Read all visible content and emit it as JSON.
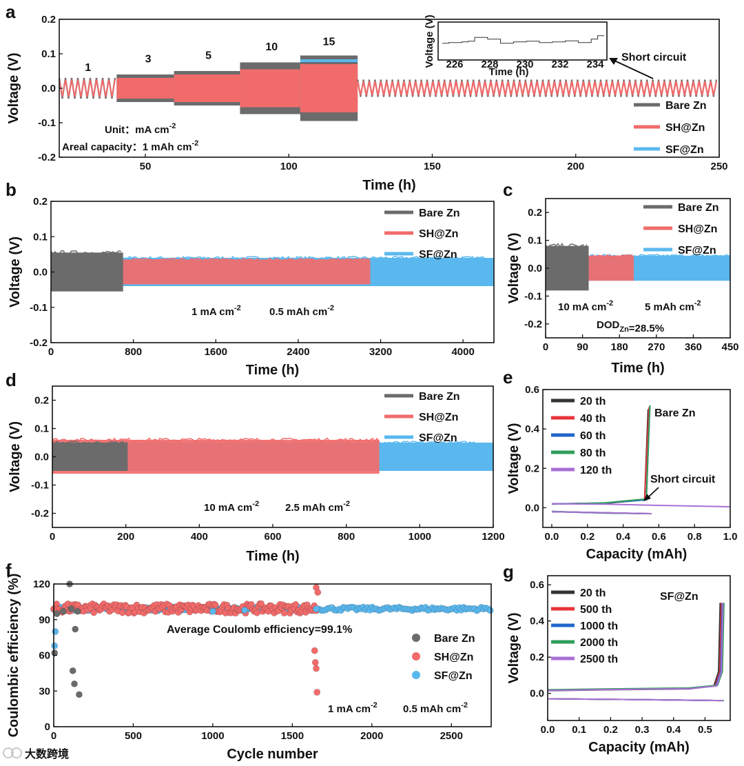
{
  "colors": {
    "bare": "#6b6b6b",
    "sh": "#f26b6b",
    "sf": "#5ab8ee",
    "shortText": "#8a8a8a"
  },
  "watermark": "大数跨境",
  "chart_data": [
    {
      "id": "a",
      "type": "line",
      "panel_letter": "a",
      "title": "",
      "xlabel": "Time (h)",
      "ylabel": "Voltage (V)",
      "xlim": [
        20,
        250
      ],
      "ylim": [
        -0.2,
        0.2
      ],
      "xticks": [
        "50",
        "100",
        "150",
        "200",
        "250"
      ],
      "yticks": [
        "-0.2",
        "-0.1",
        "0.0",
        "0.1",
        "0.2"
      ],
      "legend": [
        "Bare Zn",
        "SH@Zn",
        "SF@Zn"
      ],
      "rate_labels": [
        "1",
        "3",
        "5",
        "10",
        "15"
      ],
      "annotations": [
        "Unit：mA cm-2",
        "Areal capacity：1 mAh cm-2",
        "Short circuit"
      ],
      "series": [
        {
          "name": "Bare Zn",
          "segments": [
            [
              20,
              40,
              0.03
            ],
            [
              40,
              60,
              0.04
            ],
            [
              60,
              83,
              0.05
            ],
            [
              83,
              104,
              0.075
            ],
            [
              104,
              124,
              0.095
            ],
            [
              124,
              250,
              0.025
            ]
          ]
        },
        {
          "name": "SH@Zn",
          "segments": [
            [
              20,
              40,
              0.025
            ],
            [
              40,
              60,
              0.03
            ],
            [
              60,
              83,
              0.04
            ],
            [
              83,
              104,
              0.055
            ],
            [
              104,
              124,
              0.07
            ],
            [
              124,
              250,
              0.02
            ]
          ]
        },
        {
          "name": "SF@Zn",
          "segments": [
            [
              20,
              40,
              0.02
            ],
            [
              40,
              60,
              0.025
            ],
            [
              60,
              83,
              0.03
            ],
            [
              83,
              104,
              0.05
            ],
            [
              104,
              124,
              0.08
            ],
            [
              124,
              250,
              0.018
            ]
          ]
        }
      ],
      "inset": {
        "xlabel": "Time (h)",
        "ylabel": "Voltage (V)",
        "xticks": [
          "226",
          "228",
          "230",
          "232",
          "234"
        ]
      }
    },
    {
      "id": "b",
      "type": "area",
      "panel_letter": "b",
      "xlabel": "Time (h)",
      "ylabel": "Voltage (V)",
      "xlim": [
        0,
        4300
      ],
      "ylim": [
        -0.2,
        0.2
      ],
      "xticks": [
        "0",
        "800",
        "1600",
        "2400",
        "3200",
        "4000"
      ],
      "yticks": [
        "-0.2",
        "-0.1",
        "0.0",
        "0.1",
        "0.2"
      ],
      "legend": [
        "Bare Zn",
        "SH@Zn",
        "SF@Zn"
      ],
      "annotations": [
        "1 mA cm-2",
        "0.5 mAh cm-2"
      ],
      "series": [
        {
          "name": "SF@Zn",
          "x_end": 4300,
          "amplitude": 0.04
        },
        {
          "name": "SH@Zn",
          "x_end": 3100,
          "amplitude": 0.035
        },
        {
          "name": "Bare Zn",
          "x_end": 700,
          "amplitude": 0.055
        }
      ]
    },
    {
      "id": "c",
      "type": "area",
      "panel_letter": "c",
      "xlabel": "Time (h)",
      "ylabel": "Voltage (V)",
      "xlim": [
        0,
        450
      ],
      "ylim": [
        -0.25,
        0.25
      ],
      "xticks": [
        "0",
        "90",
        "180",
        "270",
        "360",
        "450"
      ],
      "yticks": [
        "-0.2",
        "-0.1",
        "0.0",
        "0.1",
        "0.2"
      ],
      "legend": [
        "Bare Zn",
        "SH@Zn",
        "SF@Zn"
      ],
      "annotations": [
        "10 mA cm-2",
        "5 mAh cm-2",
        "DODZn=28.5%"
      ],
      "series": [
        {
          "name": "SF@Zn",
          "x_end": 450,
          "amplitude": 0.045
        },
        {
          "name": "SH@Zn",
          "x_end": 215,
          "amplitude": 0.045
        },
        {
          "name": "Bare Zn",
          "x_end": 105,
          "amplitude": 0.08
        }
      ]
    },
    {
      "id": "d",
      "type": "area",
      "panel_letter": "d",
      "xlabel": "Time (h)",
      "ylabel": "Voltage (V)",
      "xlim": [
        0,
        1200
      ],
      "ylim": [
        -0.25,
        0.25
      ],
      "xticks": [
        "0",
        "200",
        "400",
        "600",
        "800",
        "1000",
        "1200"
      ],
      "yticks": [
        "-0.2",
        "-0.1",
        "0.0",
        "0.1",
        "0.2"
      ],
      "legend": [
        "Bare Zn",
        "SH@Zn",
        "SF@Zn"
      ],
      "annotations": [
        "10 mA cm-2",
        "2.5 mAh cm-2"
      ],
      "series": [
        {
          "name": "SF@Zn",
          "x_end": 1200,
          "amplitude": 0.05
        },
        {
          "name": "SH@Zn",
          "x_end": 890,
          "amplitude": 0.06
        },
        {
          "name": "Bare Zn",
          "x_end": 205,
          "amplitude": 0.05
        }
      ]
    },
    {
      "id": "e",
      "type": "line",
      "panel_letter": "e",
      "xlabel": "Capacity (mAh)",
      "ylabel": "Voltage (V)",
      "xlim": [
        -0.05,
        1.0
      ],
      "ylim": [
        -0.1,
        0.6
      ],
      "xticks": [
        "0.0",
        "0.2",
        "0.4",
        "0.6",
        "0.8",
        "1.0"
      ],
      "yticks": [
        "0.0",
        "0.2",
        "0.4",
        "0.6"
      ],
      "legend": [
        "20 th",
        "40 th",
        "60 th",
        "80 th",
        "120 th"
      ],
      "legend_colors": [
        "#333333",
        "#e8333a",
        "#2266cc",
        "#2e9e5a",
        "#a970d6"
      ],
      "annotations": [
        "Bare Zn",
        "Short circuit"
      ],
      "series": [
        {
          "name": "20 th",
          "charge": [
            [
              0.0,
              0.02
            ],
            [
              0.3,
              0.022
            ],
            [
              0.52,
              0.04
            ],
            [
              0.54,
              0.5
            ]
          ],
          "discharge": [
            [
              0.0,
              -0.02
            ],
            [
              0.3,
              -0.025
            ],
            [
              0.54,
              -0.03
            ]
          ]
        },
        {
          "name": "40 th",
          "charge": [
            [
              0.0,
              0.02
            ],
            [
              0.3,
              0.023
            ],
            [
              0.52,
              0.04
            ],
            [
              0.545,
              0.51
            ]
          ],
          "discharge": [
            [
              0.0,
              -0.02
            ],
            [
              0.3,
              -0.026
            ],
            [
              0.545,
              -0.03
            ]
          ]
        },
        {
          "name": "60 th",
          "charge": [
            [
              0.0,
              0.02
            ],
            [
              0.3,
              0.024
            ],
            [
              0.53,
              0.04
            ],
            [
              0.55,
              0.52
            ]
          ],
          "discharge": [
            [
              0.0,
              -0.02
            ],
            [
              0.3,
              -0.027
            ],
            [
              0.55,
              -0.03
            ]
          ]
        },
        {
          "name": "80 th",
          "charge": [
            [
              0.0,
              0.018
            ],
            [
              0.3,
              0.025
            ],
            [
              0.53,
              0.045
            ],
            [
              0.55,
              0.52
            ]
          ],
          "discharge": [
            [
              0.0,
              -0.018
            ],
            [
              0.3,
              -0.027
            ],
            [
              0.55,
              -0.03
            ]
          ]
        },
        {
          "name": "120 th",
          "charge": [
            [
              0.0,
              0.02
            ],
            [
              0.3,
              0.018
            ],
            [
              0.6,
              0.012
            ],
            [
              1.0,
              0.005
            ]
          ],
          "discharge": [
            [
              0.0,
              -0.02
            ],
            [
              0.3,
              -0.025
            ],
            [
              0.56,
              -0.03
            ]
          ]
        }
      ]
    },
    {
      "id": "f",
      "type": "scatter",
      "panel_letter": "f",
      "xlabel": "Cycle number",
      "ylabel": "Coulombic efficiency (%)",
      "xlim": [
        0,
        2750
      ],
      "ylim": [
        0,
        120
      ],
      "xticks": [
        "0",
        "500",
        "1000",
        "1500",
        "2000",
        "2500"
      ],
      "yticks": [
        "0",
        "30",
        "60",
        "90",
        "120"
      ],
      "legend": [
        "Bare Zn",
        "SH@Zn",
        "SF@Zn"
      ],
      "annotations": [
        "Average Coulomb efficiency=99.1%",
        "1 mA cm-2",
        "0.5 mAh cm-2"
      ],
      "series": [
        {
          "name": "Bare Zn",
          "points": [
            [
              5,
              62
            ],
            [
              20,
              95
            ],
            [
              60,
              97
            ],
            [
              100,
              120
            ],
            [
              110,
              99
            ],
            [
              120,
              47
            ],
            [
              130,
              36
            ],
            [
              135,
              82
            ],
            [
              150,
              97
            ],
            [
              160,
              27
            ]
          ]
        },
        {
          "name": "SH@Zn",
          "cycle_range": [
            0,
            1650
          ],
          "mean": 99,
          "spread": 4,
          "outliers": [
            [
              1640,
              64
            ],
            [
              1645,
              54
            ],
            [
              1650,
              49
            ],
            [
              1655,
              29
            ],
            [
              1650,
              117
            ],
            [
              1660,
              113
            ]
          ]
        },
        {
          "name": "SF@Zn",
          "cycle_range": [
            0,
            2750
          ],
          "mean": 99.1,
          "spread": 1.5,
          "outliers": [
            [
              5,
              68
            ],
            [
              10,
              80
            ],
            [
              1000,
              97
            ],
            [
              1200,
              98
            ],
            [
              1650,
              99
            ]
          ]
        }
      ]
    },
    {
      "id": "g",
      "type": "line",
      "panel_letter": "g",
      "xlabel": "Capacity (mAh)",
      "ylabel": "Voltage (V)",
      "xlim": [
        0,
        0.58
      ],
      "ylim": [
        -0.15,
        0.65
      ],
      "xticks": [
        "0.0",
        "0.1",
        "0.2",
        "0.3",
        "0.4",
        "0.5"
      ],
      "yticks": [
        "0.0",
        "0.2",
        "0.4",
        "0.6"
      ],
      "legend": [
        "20 th",
        "500 th",
        "1000 th",
        "2000 th",
        "2500 th"
      ],
      "legend_colors": [
        "#333333",
        "#e8333a",
        "#2266cc",
        "#2e9e5a",
        "#a970d6"
      ],
      "annotations": [
        "SF@Zn"
      ],
      "series": [
        {
          "name": "20 th",
          "end": 0.548,
          "plateau": 0.025
        },
        {
          "name": "500 th",
          "end": 0.552,
          "plateau": 0.027
        },
        {
          "name": "1000 th",
          "end": 0.555,
          "plateau": 0.028
        },
        {
          "name": "2000 th",
          "end": 0.56,
          "plateau": 0.03
        },
        {
          "name": "2500 th",
          "end": 0.557,
          "plateau": 0.026
        }
      ]
    }
  ]
}
